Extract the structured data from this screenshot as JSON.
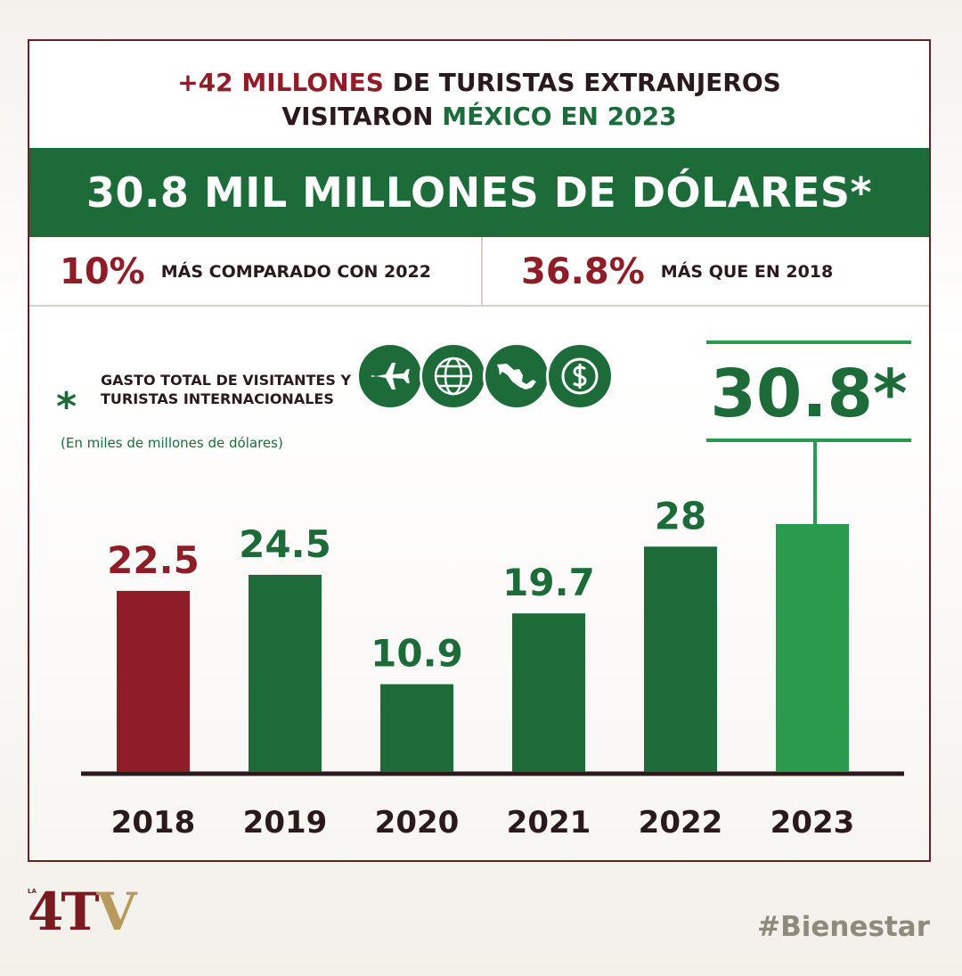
{
  "header": {
    "line1_highlight": "+42 MILLONES",
    "line1_rest": " DE TURISTAS EXTRANJEROS",
    "line2_start": "VISITARON ",
    "line2_highlight": "MÉXICO EN 2023"
  },
  "banner": {
    "text": "30.8 MIL MILLONES DE DÓLARES*"
  },
  "stats": [
    {
      "value": "10%",
      "label": "MÁS COMPARADO CON 2022"
    },
    {
      "value": "36.8%",
      "label": "MÁS QUE EN 2018"
    }
  ],
  "legend": {
    "asterisk": "*",
    "label": "GASTO TOTAL DE VISITANTES Y TURISTAS INTERNACIONALES",
    "unit": "(En miles de millones de dólares)"
  },
  "icons": [
    "airplane-icon",
    "globe-icon",
    "mexico-map-icon",
    "dollar-coin-icon"
  ],
  "highlight_value": "30.8*",
  "chart_data": {
    "type": "bar",
    "categories": [
      "2018",
      "2019",
      "2020",
      "2021",
      "2022",
      "2023"
    ],
    "values": [
      22.5,
      24.5,
      10.9,
      19.7,
      28,
      30.8
    ],
    "value_labels": [
      "22.5",
      "24.5",
      "10.9",
      "19.7",
      "28",
      ""
    ],
    "title": "",
    "xlabel": "",
    "ylabel": "",
    "ylim": [
      0,
      30.8
    ],
    "grid": false,
    "colors": [
      "#8f1d27",
      "#1e6b3a",
      "#1e6b3a",
      "#1e6b3a",
      "#1e6b3a",
      "#2a9b4c"
    ]
  },
  "footer": {
    "logo_small": "LA",
    "logo_main": "4T",
    "logo_v": "V",
    "hashtag": "#Bienestar"
  }
}
